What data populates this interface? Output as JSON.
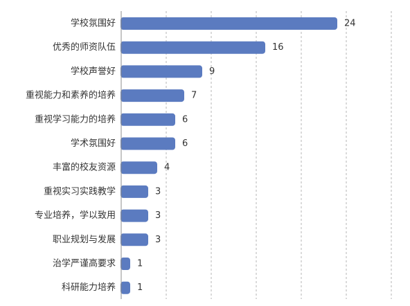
{
  "chart_data": {
    "type": "bar",
    "orientation": "horizontal",
    "categories": [
      "学校氛围好",
      "优秀的师资队伍",
      "学校声誉好",
      "重视能力和素养的培养",
      "重视学习能力的培养",
      "学术氛围好",
      "丰富的校友资源",
      "重视实习实践教学",
      "专业培养，学以致用",
      "职业规划与发展",
      "治学严谨高要求",
      "科研能力培养"
    ],
    "values": [
      24,
      16,
      9,
      7,
      6,
      6,
      4,
      3,
      3,
      3,
      1,
      1
    ],
    "xlim": [
      0,
      30
    ],
    "grid": true,
    "bar_color": "#5b7bc0",
    "title": "",
    "xlabel": "",
    "ylabel": ""
  }
}
